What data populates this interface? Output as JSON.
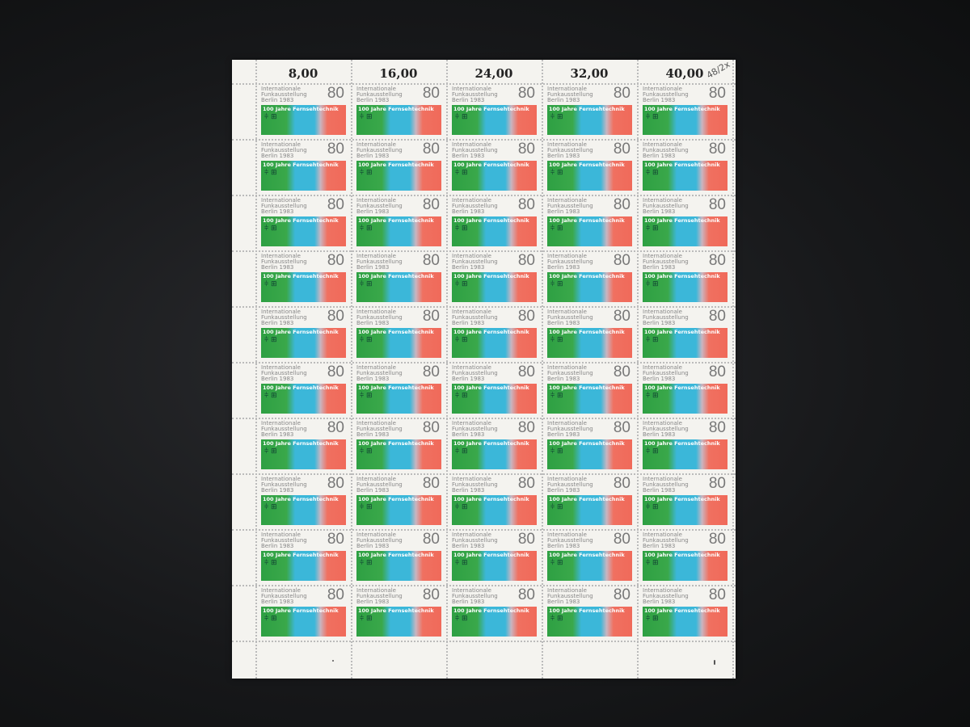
{
  "sheet": {
    "margin_values": [
      "8,00",
      "16,00",
      "24,00",
      "32,00",
      "40,00"
    ],
    "corner_note": "48/2x",
    "rows": 10,
    "columns": 5,
    "stamp": {
      "text": "Internationale Funkausstellung Berlin 1983",
      "value": "80",
      "title": "100 Jahre Fernsehtechnik",
      "colors": {
        "green": "#2ea043",
        "blue": "#3bb7d9",
        "red": "#f06a5a"
      }
    }
  }
}
